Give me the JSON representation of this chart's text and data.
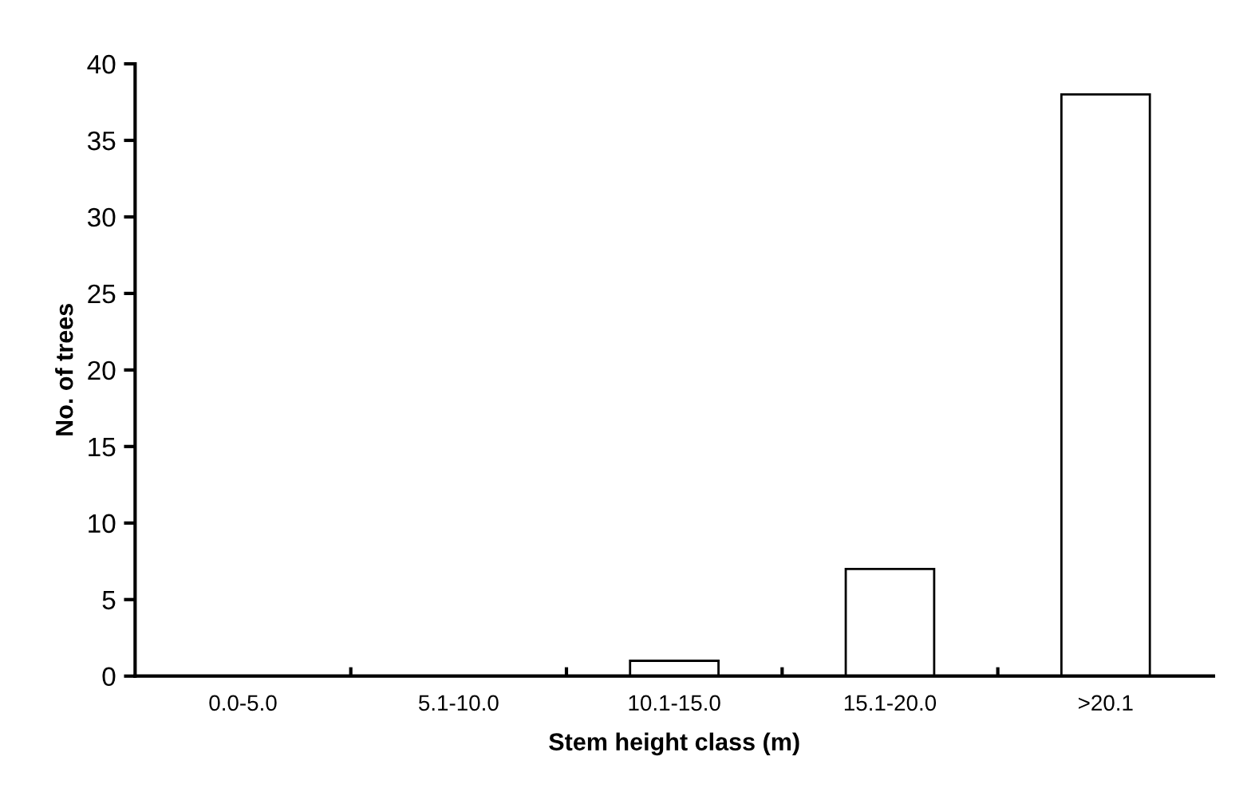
{
  "chart_data": {
    "type": "bar",
    "xlabel": "Stem height class (m)",
    "ylabel": "No. of trees",
    "categories": [
      "0.0-5.0",
      "5.1-10.0",
      "10.1-15.0",
      "15.1-20.0",
      ">20.1"
    ],
    "values": [
      0,
      0,
      1,
      7,
      38
    ],
    "color": "#ffffff",
    "ylim": [
      0,
      40
    ],
    "yticks": [
      0,
      5,
      10,
      15,
      20,
      25,
      30,
      35,
      40
    ],
    "grid": false,
    "legend": false
  }
}
